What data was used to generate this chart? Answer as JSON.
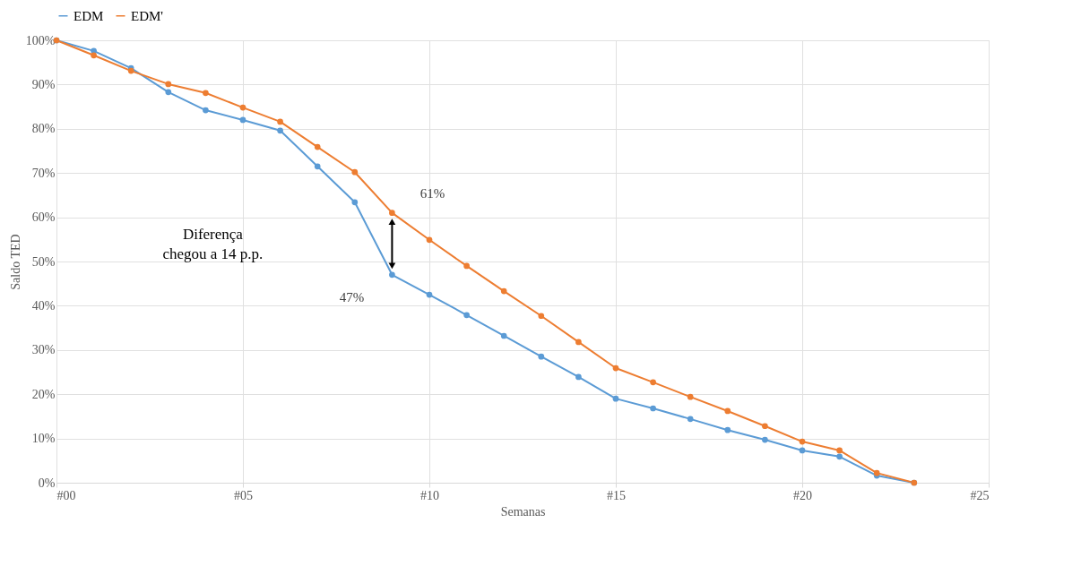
{
  "chart_data": {
    "type": "line",
    "xlabel": "Semanas",
    "ylabel": "Saldo TED",
    "x": [
      0,
      1,
      2,
      3,
      4,
      5,
      6,
      7,
      8,
      9,
      10,
      11,
      12,
      13,
      14,
      15,
      16,
      17,
      18,
      19,
      20,
      21,
      22,
      23
    ],
    "series": [
      {
        "name": "EDM",
        "color": "#5b9bd5",
        "values": [
          100,
          97.6,
          93.7,
          88.3,
          84.2,
          82.0,
          79.6,
          71.5,
          63.4,
          47,
          42.5,
          37.9,
          33.2,
          28.5,
          23.9,
          19.0,
          16.8,
          14.4,
          11.9,
          9.7,
          7.3,
          5.9,
          1.6,
          0
        ],
        "value_labels": [
          null,
          null,
          null,
          null,
          null,
          null,
          null,
          null,
          null,
          "47%",
          null,
          null,
          null,
          null,
          null,
          null,
          null,
          null,
          null,
          null,
          null,
          null,
          null,
          null
        ]
      },
      {
        "name": "EDM'",
        "color": "#ed7d31",
        "values": [
          100,
          96.6,
          93.1,
          90.1,
          88.1,
          84.8,
          81.6,
          75.9,
          70.2,
          61,
          54.9,
          49.0,
          43.3,
          37.7,
          31.8,
          25.9,
          22.7,
          19.4,
          16.2,
          12.8,
          9.3,
          7.3,
          2.2,
          0
        ],
        "value_labels": [
          null,
          null,
          null,
          null,
          null,
          null,
          null,
          null,
          null,
          "61%",
          null,
          null,
          null,
          null,
          null,
          null,
          null,
          null,
          null,
          null,
          null,
          null,
          null,
          null
        ]
      }
    ],
    "xlim": [
      0,
      25
    ],
    "xticks": [
      {
        "value": 0,
        "label": "#00"
      },
      {
        "value": 5,
        "label": "#05"
      },
      {
        "value": 10,
        "label": "#10"
      },
      {
        "value": 15,
        "label": "#15"
      },
      {
        "value": 20,
        "label": "#20"
      },
      {
        "value": 25,
        "label": "#25"
      }
    ],
    "ylim": [
      0,
      100
    ],
    "yticks": [
      {
        "value": 0,
        "label": "0%"
      },
      {
        "value": 10,
        "label": "10%"
      },
      {
        "value": 20,
        "label": "20%"
      },
      {
        "value": 30,
        "label": "30%"
      },
      {
        "value": 40,
        "label": "40%"
      },
      {
        "value": 50,
        "label": "50%"
      },
      {
        "value": 60,
        "label": "60%"
      },
      {
        "value": 70,
        "label": "70%"
      },
      {
        "value": 80,
        "label": "80%"
      },
      {
        "value": 90,
        "label": "90%"
      },
      {
        "value": 100,
        "label": "100%"
      }
    ],
    "annotations": [
      "Diferença chegou a 14 p.p."
    ],
    "grid": true,
    "legend": "top",
    "marker": "circle",
    "line_style": "solid"
  }
}
